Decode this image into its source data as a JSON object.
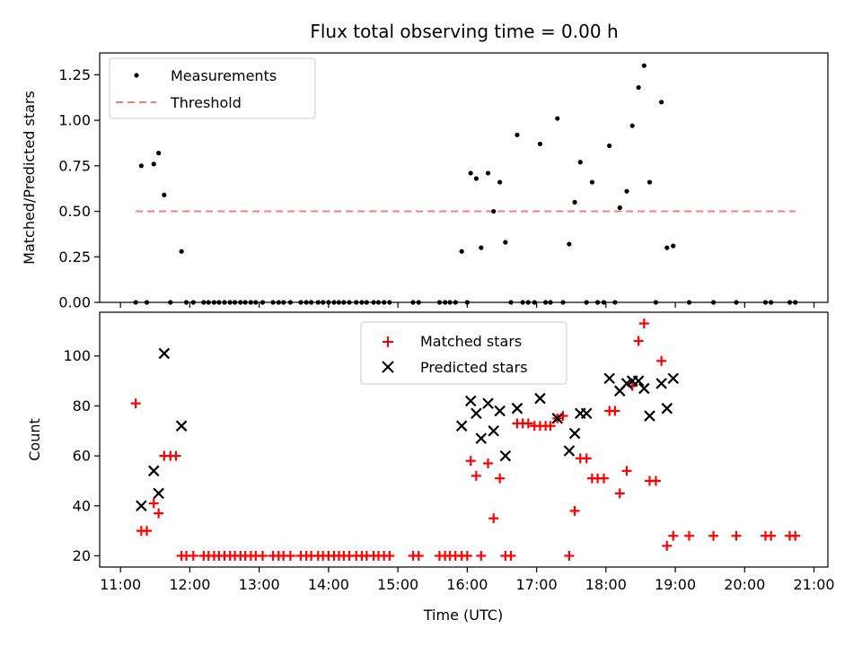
{
  "chart_data": [
    {
      "type": "scatter",
      "title": "Flux total observing time = 0.00 h",
      "xlabel": "",
      "ylabel": "Matched/Predicted stars",
      "xlim": [
        10.7,
        21.2
      ],
      "ylim": [
        0,
        1.37
      ],
      "yticks": [
        0,
        0.25,
        0.5,
        0.75,
        1.0,
        1.25
      ],
      "ytick_labels": [
        "0.00",
        "0.25",
        "0.50",
        "0.75",
        "1.00",
        "1.25"
      ],
      "legend": {
        "placement": "top-left",
        "entries": [
          "Measurements",
          "Threshold"
        ]
      },
      "threshold": {
        "name": "Threshold",
        "value": 0.5,
        "x_start": 11.22,
        "x_end": 20.73,
        "color": "#f08080"
      },
      "series": [
        {
          "name": "Measurements",
          "color": "#000000",
          "marker": "dot",
          "points": [
            [
              11.22,
              0
            ],
            [
              11.3,
              0.75
            ],
            [
              11.38,
              0
            ],
            [
              11.48,
              0.76
            ],
            [
              11.55,
              0.82
            ],
            [
              11.63,
              0.59
            ],
            [
              11.72,
              0
            ],
            [
              11.88,
              0.28
            ],
            [
              11.95,
              0
            ],
            [
              12.05,
              0
            ],
            [
              12.2,
              0
            ],
            [
              12.27,
              0
            ],
            [
              12.35,
              0
            ],
            [
              12.42,
              0
            ],
            [
              12.5,
              0
            ],
            [
              12.58,
              0
            ],
            [
              12.65,
              0
            ],
            [
              12.73,
              0
            ],
            [
              12.8,
              0
            ],
            [
              12.88,
              0
            ],
            [
              12.95,
              0
            ],
            [
              13.05,
              0
            ],
            [
              13.2,
              0
            ],
            [
              13.28,
              0
            ],
            [
              13.35,
              0
            ],
            [
              13.45,
              0
            ],
            [
              13.6,
              0
            ],
            [
              13.68,
              0
            ],
            [
              13.75,
              0
            ],
            [
              13.85,
              0
            ],
            [
              13.92,
              0
            ],
            [
              14.0,
              0
            ],
            [
              14.08,
              0
            ],
            [
              14.15,
              0
            ],
            [
              14.22,
              0
            ],
            [
              14.3,
              0
            ],
            [
              14.4,
              0
            ],
            [
              14.48,
              0
            ],
            [
              14.55,
              0
            ],
            [
              14.65,
              0
            ],
            [
              14.72,
              0
            ],
            [
              14.8,
              0
            ],
            [
              14.88,
              0
            ],
            [
              15.22,
              0
            ],
            [
              15.3,
              0
            ],
            [
              15.6,
              0
            ],
            [
              15.68,
              0
            ],
            [
              15.75,
              0
            ],
            [
              15.83,
              0
            ],
            [
              15.92,
              0.28
            ],
            [
              16.0,
              0
            ],
            [
              16.05,
              0.71
            ],
            [
              16.13,
              0.68
            ],
            [
              16.2,
              0.3
            ],
            [
              16.3,
              0.71
            ],
            [
              16.38,
              0.5
            ],
            [
              16.47,
              0.66
            ],
            [
              16.55,
              0.33
            ],
            [
              16.63,
              0
            ],
            [
              16.72,
              0.92
            ],
            [
              16.8,
              0
            ],
            [
              16.88,
              0
            ],
            [
              16.97,
              0
            ],
            [
              17.05,
              0.87
            ],
            [
              17.13,
              0
            ],
            [
              17.2,
              0
            ],
            [
              17.3,
              1.01
            ],
            [
              17.38,
              0
            ],
            [
              17.47,
              0.32
            ],
            [
              17.55,
              0.55
            ],
            [
              17.63,
              0.77
            ],
            [
              17.72,
              0
            ],
            [
              17.8,
              0.66
            ],
            [
              17.88,
              0
            ],
            [
              17.97,
              0
            ],
            [
              18.05,
              0.86
            ],
            [
              18.13,
              0
            ],
            [
              18.2,
              0.52
            ],
            [
              18.3,
              0.61
            ],
            [
              18.38,
              0.97
            ],
            [
              18.47,
              1.18
            ],
            [
              18.55,
              1.3
            ],
            [
              18.63,
              0.66
            ],
            [
              18.72,
              0
            ],
            [
              18.8,
              1.1
            ],
            [
              18.88,
              0.3
            ],
            [
              18.97,
              0.31
            ],
            [
              19.2,
              0
            ],
            [
              19.55,
              0
            ],
            [
              19.88,
              0
            ],
            [
              20.3,
              0
            ],
            [
              20.38,
              0
            ],
            [
              20.65,
              0
            ],
            [
              20.73,
              0
            ]
          ]
        }
      ]
    },
    {
      "type": "scatter",
      "title": "",
      "xlabel": "Time (UTC)",
      "ylabel": "Count",
      "xlim": [
        10.7,
        21.2
      ],
      "ylim": [
        15.5,
        117.5
      ],
      "yticks": [
        20,
        40,
        60,
        80,
        100
      ],
      "ytick_labels": [
        "20",
        "40",
        "60",
        "80",
        "100"
      ],
      "xticks": [
        11,
        12,
        13,
        14,
        15,
        16,
        17,
        18,
        19,
        20,
        21
      ],
      "xtick_labels": [
        "11:00",
        "12:00",
        "13:00",
        "14:00",
        "15:00",
        "16:00",
        "17:00",
        "18:00",
        "19:00",
        "20:00",
        "21:00"
      ],
      "legend": {
        "placement": "top-center",
        "entries": [
          "Matched stars",
          "Predicted stars"
        ]
      },
      "series": [
        {
          "name": "Matched stars",
          "color": "#ff0000",
          "marker": "plus",
          "points": [
            [
              11.22,
              81
            ],
            [
              11.3,
              30
            ],
            [
              11.38,
              30
            ],
            [
              11.48,
              41
            ],
            [
              11.55,
              37
            ],
            [
              11.63,
              60
            ],
            [
              11.72,
              60
            ],
            [
              11.8,
              60
            ],
            [
              11.88,
              20
            ],
            [
              11.95,
              20
            ],
            [
              12.05,
              20
            ],
            [
              12.2,
              20
            ],
            [
              12.27,
              20
            ],
            [
              12.35,
              20
            ],
            [
              12.42,
              20
            ],
            [
              12.5,
              20
            ],
            [
              12.58,
              20
            ],
            [
              12.65,
              20
            ],
            [
              12.73,
              20
            ],
            [
              12.8,
              20
            ],
            [
              12.88,
              20
            ],
            [
              12.95,
              20
            ],
            [
              13.05,
              20
            ],
            [
              13.2,
              20
            ],
            [
              13.28,
              20
            ],
            [
              13.35,
              20
            ],
            [
              13.45,
              20
            ],
            [
              13.6,
              20
            ],
            [
              13.68,
              20
            ],
            [
              13.75,
              20
            ],
            [
              13.85,
              20
            ],
            [
              13.92,
              20
            ],
            [
              14.0,
              20
            ],
            [
              14.08,
              20
            ],
            [
              14.15,
              20
            ],
            [
              14.22,
              20
            ],
            [
              14.3,
              20
            ],
            [
              14.4,
              20
            ],
            [
              14.48,
              20
            ],
            [
              14.55,
              20
            ],
            [
              14.65,
              20
            ],
            [
              14.72,
              20
            ],
            [
              14.8,
              20
            ],
            [
              14.88,
              20
            ],
            [
              15.22,
              20
            ],
            [
              15.3,
              20
            ],
            [
              15.6,
              20
            ],
            [
              15.68,
              20
            ],
            [
              15.75,
              20
            ],
            [
              15.83,
              20
            ],
            [
              15.92,
              20
            ],
            [
              16.0,
              20
            ],
            [
              16.05,
              58
            ],
            [
              16.13,
              52
            ],
            [
              16.2,
              20
            ],
            [
              16.3,
              57
            ],
            [
              16.38,
              35
            ],
            [
              16.47,
              51
            ],
            [
              16.55,
              20
            ],
            [
              16.63,
              20
            ],
            [
              16.72,
              73
            ],
            [
              16.8,
              73
            ],
            [
              16.88,
              73
            ],
            [
              16.97,
              72
            ],
            [
              17.05,
              72
            ],
            [
              17.13,
              72
            ],
            [
              17.2,
              72
            ],
            [
              17.3,
              75
            ],
            [
              17.38,
              76
            ],
            [
              17.47,
              20
            ],
            [
              17.55,
              38
            ],
            [
              17.63,
              59
            ],
            [
              17.72,
              59
            ],
            [
              17.8,
              51
            ],
            [
              17.88,
              51
            ],
            [
              17.97,
              51
            ],
            [
              18.05,
              78
            ],
            [
              18.13,
              78
            ],
            [
              18.2,
              45
            ],
            [
              18.3,
              54
            ],
            [
              18.38,
              88
            ],
            [
              18.47,
              106
            ],
            [
              18.55,
              113
            ],
            [
              18.63,
              50
            ],
            [
              18.72,
              50
            ],
            [
              18.8,
              98
            ],
            [
              18.88,
              24
            ],
            [
              18.97,
              28
            ],
            [
              19.2,
              28
            ],
            [
              19.55,
              28
            ],
            [
              19.88,
              28
            ],
            [
              20.3,
              28
            ],
            [
              20.38,
              28
            ],
            [
              20.65,
              28
            ],
            [
              20.73,
              28
            ]
          ]
        },
        {
          "name": "Predicted stars",
          "color": "#000000",
          "marker": "x",
          "points": [
            [
              11.3,
              40
            ],
            [
              11.48,
              54
            ],
            [
              11.55,
              45
            ],
            [
              11.63,
              101
            ],
            [
              11.88,
              72
            ],
            [
              15.92,
              72
            ],
            [
              16.05,
              82
            ],
            [
              16.13,
              77
            ],
            [
              16.2,
              67
            ],
            [
              16.3,
              81
            ],
            [
              16.38,
              70
            ],
            [
              16.47,
              78
            ],
            [
              16.55,
              60
            ],
            [
              16.72,
              79
            ],
            [
              17.05,
              83
            ],
            [
              17.3,
              75
            ],
            [
              17.47,
              62
            ],
            [
              17.55,
              69
            ],
            [
              17.63,
              77
            ],
            [
              17.72,
              77
            ],
            [
              18.05,
              91
            ],
            [
              18.2,
              86
            ],
            [
              18.3,
              89
            ],
            [
              18.38,
              90
            ],
            [
              18.47,
              90
            ],
            [
              18.55,
              87
            ],
            [
              18.63,
              76
            ],
            [
              18.8,
              89
            ],
            [
              18.88,
              79
            ],
            [
              18.97,
              91
            ]
          ]
        }
      ]
    }
  ]
}
